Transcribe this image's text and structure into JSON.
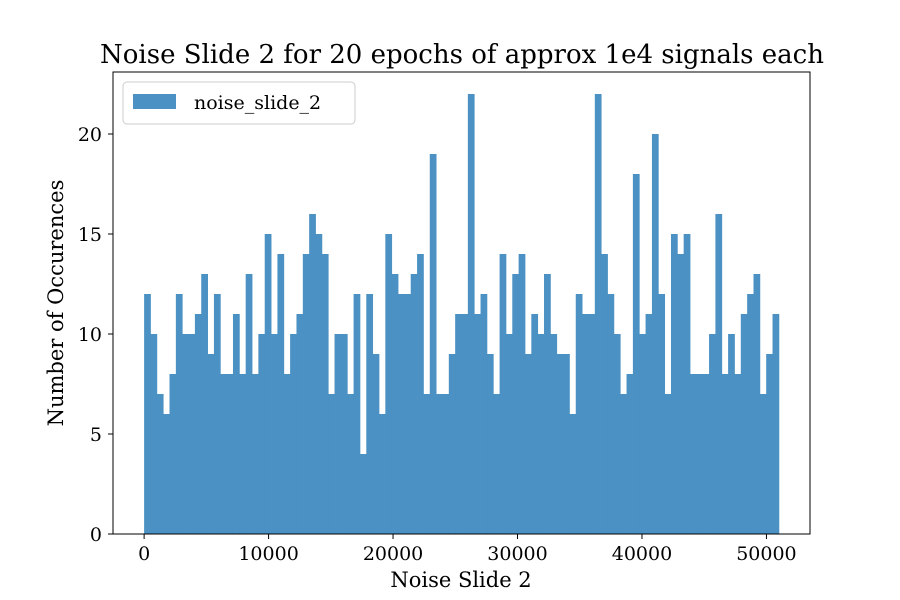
{
  "chart_data": {
    "type": "bar",
    "title": "Noise Slide 2 for 20 epochs of approx 1e4 signals each",
    "xlabel": "Noise Slide 2",
    "ylabel": "Number of Occurences",
    "xlim": [
      -2500,
      53500
    ],
    "ylim": [
      0,
      23.1
    ],
    "xticks": [
      0,
      10000,
      20000,
      30000,
      40000,
      50000
    ],
    "yticks": [
      0,
      5,
      10,
      15,
      20
    ],
    "grid": false,
    "legend_position": "top-left",
    "series": [
      {
        "name": "noise_slide_2",
        "color": "#4b91c3",
        "bin_start": 0,
        "bin_width": 510,
        "counts": [
          12,
          10,
          7,
          6,
          8,
          12,
          10,
          10,
          11,
          13,
          9,
          12,
          8,
          8,
          11,
          8,
          13,
          8,
          10,
          15,
          10,
          14,
          8,
          10,
          11,
          14,
          16,
          15,
          14,
          7,
          10,
          10,
          7,
          12,
          4,
          12,
          9,
          6,
          15,
          13,
          12,
          12,
          13,
          14,
          7,
          19,
          7,
          7,
          9,
          11,
          11,
          22,
          11,
          12,
          9,
          7,
          14,
          10,
          13,
          14,
          9,
          11,
          10,
          13,
          10,
          9,
          9,
          6,
          12,
          11,
          11,
          22,
          14,
          12,
          10,
          7,
          8,
          18,
          10,
          11,
          20,
          12,
          7,
          15,
          14,
          15,
          8,
          8,
          8,
          10,
          16,
          8,
          10,
          8,
          11,
          12,
          13,
          7,
          9,
          11
        ]
      }
    ]
  }
}
